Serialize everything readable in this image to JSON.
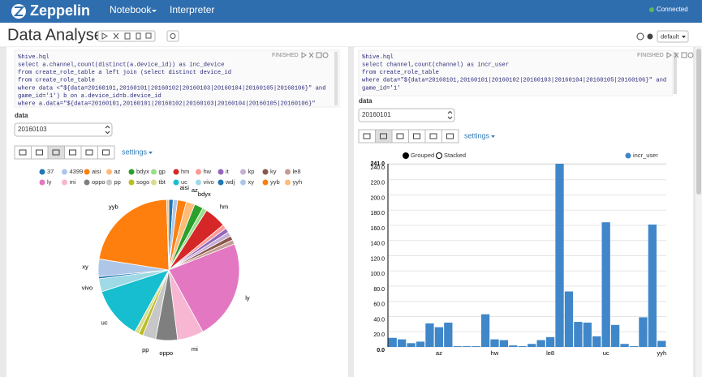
{
  "navbar": {
    "brand": "Zeppelin",
    "menu": [
      "Notebook",
      "Interpreter"
    ],
    "status": "Connected"
  },
  "note": {
    "title": "Data Analyse",
    "interpreter": "default"
  },
  "paragraphs": [
    {
      "status": "FINISHED",
      "code": [
        "%hive.hql",
        "select a.channel,count(distinct(a.device_id)) as inc_device",
        "from create_role_table a left join (select distinct device_id",
        "from create_role_table",
        "where data <\"${data=20160101,20160101|20160102|20160103|20160104|20160105|20160106}\" and",
        "game_id='1') b on a.device_id=b.device_id",
        "where a.data=\"${data=20160101,20160101|20160102|20160103|20160104|20160105|20160106}\""
      ],
      "param_label": "data",
      "param_value": "20160103",
      "settings": "settings"
    },
    {
      "status": "FINISHED",
      "code": [
        "%hive.hql",
        "select channel,count(channel) as incr_user",
        "from create_role_table",
        "where data=\"${data=20160101,20160101|20160102|20160103|20160104|20160105|20160106}\" and",
        "game_id='1'"
      ],
      "param_label": "data",
      "param_value": "20160101",
      "settings": "settings"
    }
  ],
  "chart_data": [
    {
      "type": "pie",
      "categories": [
        "37",
        "4399",
        "aisi",
        "az",
        "bdyx",
        "gp",
        "hm",
        "hw",
        "it",
        "kp",
        "ky",
        "le8",
        "ly",
        "mi",
        "oppo",
        "pp",
        "sogo",
        "tbt",
        "uc",
        "vivo",
        "wdj",
        "xy",
        "yyb",
        "yyh"
      ],
      "values": [
        1,
        1,
        2,
        2,
        2,
        1,
        5,
        1,
        1,
        1,
        1,
        1,
        23,
        6,
        5,
        3,
        1,
        1,
        12,
        3,
        0.5,
        4,
        22,
        0.5
      ],
      "colors": [
        "#1f77b4",
        "#aec7e8",
        "#ff7f0e",
        "#ffbb78",
        "#2ca02c",
        "#98df8a",
        "#d62728",
        "#ff9896",
        "#9467bd",
        "#c5b0d5",
        "#8c564b",
        "#c49c94",
        "#e377c2",
        "#f7b6d2",
        "#7f7f7f",
        "#c7c7c7",
        "#bcbd22",
        "#dbdb8d",
        "#17becf",
        "#9edae5",
        "#1f77b4",
        "#aec7e8",
        "#ff7f0e",
        "#ffbb78"
      ]
    },
    {
      "type": "bar",
      "modes": [
        "Grouped",
        "Stacked"
      ],
      "categories": [
        null,
        null,
        null,
        null,
        null,
        "az",
        null,
        null,
        null,
        null,
        null,
        "hw",
        null,
        null,
        null,
        null,
        null,
        "le8",
        null,
        null,
        null,
        null,
        null,
        "uc",
        null,
        null,
        null,
        null,
        null,
        "yyh"
      ],
      "series": [
        {
          "name": "incr_user",
          "color": "#3f87c9",
          "values": [
            12,
            10,
            5,
            7,
            31,
            26,
            32,
            1,
            1,
            1,
            43,
            10,
            9,
            2,
            1,
            4,
            9,
            13,
            241,
            73,
            33,
            32,
            14,
            164,
            29,
            4,
            1,
            39,
            161,
            8
          ]
        }
      ],
      "ylim": [
        0,
        241
      ],
      "yticks": [
        {
          "value": 0,
          "label": "0.0"
        },
        {
          "value": 20,
          "label": "20.0"
        },
        {
          "value": 40,
          "label": "40.0"
        },
        {
          "value": 60,
          "label": "60.0"
        },
        {
          "value": 80,
          "label": "80.0"
        },
        {
          "value": 100,
          "label": "100.0"
        },
        {
          "value": 120,
          "label": "120.0"
        },
        {
          "value": 140,
          "label": "140.0"
        },
        {
          "value": 160,
          "label": "160.0"
        },
        {
          "value": 180,
          "label": "180.0"
        },
        {
          "value": 200,
          "label": "200.0"
        },
        {
          "value": 220,
          "label": "220.0"
        },
        {
          "value": 240,
          "label": "240.0"
        },
        {
          "value": 241,
          "label": "241.0"
        }
      ],
      "grid": true
    }
  ]
}
